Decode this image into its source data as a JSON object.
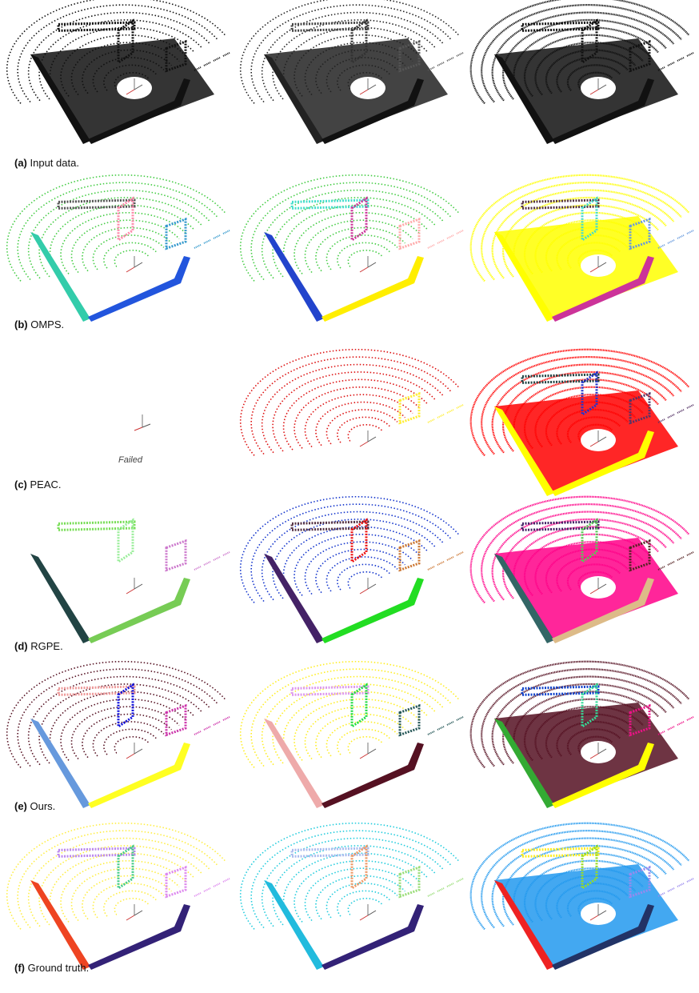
{
  "rows": [
    {
      "id": "a",
      "tag": "(a)",
      "caption": "Input data.",
      "panels": [
        {
          "floor": "#111111",
          "rings": "#111111",
          "walls": [
            "#111111",
            "#111111",
            "#111111"
          ],
          "side": "#111111",
          "front": "#111111"
        },
        {
          "floor": "#222222",
          "rings": "#222222",
          "walls": [
            "#444444",
            "#333333",
            "#555555"
          ],
          "side": "#222222",
          "front": "#111111"
        },
        {
          "floor": "#111111",
          "rings": "#111111",
          "walls": [
            "#111111",
            "#111111",
            "#111111"
          ],
          "side": "#111111",
          "front": "#111111",
          "dense": true
        }
      ]
    },
    {
      "id": "b",
      "tag": "(b)",
      "caption": "OMPS.",
      "panels": [
        {
          "floor": "none",
          "rings": "#44cc44",
          "walls": [
            "#555555",
            "#ff88aa",
            "#3399cc"
          ],
          "side": "#33ccaa",
          "front": "#2255dd"
        },
        {
          "floor": "none",
          "rings": "#44cc44",
          "walls": [
            "#44ddcc",
            "#cc3399",
            "#ffaaaa"
          ],
          "side": "#2244cc",
          "front": "#ffee00"
        },
        {
          "floor": "#ffff00",
          "rings": "#ffff00",
          "walls": [
            "#553344",
            "#44ddcc",
            "#6699dd"
          ],
          "side": "#ffff00",
          "front": "#cc3399",
          "dense": true
        }
      ]
    },
    {
      "id": "c",
      "tag": "(c)",
      "caption": "PEAC.",
      "failed_label": "Failed",
      "panels": [
        {
          "failed": true
        },
        {
          "floor": "none",
          "rings": "#dd1111",
          "walls": [
            "#ffffff",
            "#ffffff",
            "#ffee33"
          ],
          "side": "none",
          "front": "none"
        },
        {
          "floor": "#ff0000",
          "rings": "#ff0000",
          "walls": [
            "#224444",
            "#2233cc",
            "#553366"
          ],
          "side": "#ffff00",
          "front": "#ffff00",
          "dense": true
        }
      ]
    },
    {
      "id": "d",
      "tag": "(d)",
      "caption": "RGPE.",
      "panels": [
        {
          "floor": "none",
          "rings": "#ffffff",
          "walls": [
            "#77dd55",
            "#99ee99",
            "#cc77cc"
          ],
          "side": "#224444",
          "front": "#77cc55"
        },
        {
          "floor": "none",
          "rings": "#1133cc",
          "walls": [
            "#553344",
            "#ee1111",
            "#cc7733"
          ],
          "side": "#442266",
          "front": "#22dd22"
        },
        {
          "floor": "#ff0088",
          "rings": "#ff0088",
          "walls": [
            "#442266",
            "#55cc55",
            "#552222"
          ],
          "side": "#336666",
          "front": "#ddbb88",
          "dense": true
        }
      ]
    },
    {
      "id": "e",
      "tag": "(e)",
      "caption": "Ours.",
      "panels": [
        {
          "floor": "none",
          "rings": "#551122",
          "walls": [
            "#ee9999",
            "#1111dd",
            "#cc33aa"
          ],
          "side": "#6699dd",
          "front": "#ffff22"
        },
        {
          "floor": "none",
          "rings": "#ffee22",
          "walls": [
            "#dd99ee",
            "#22dd44",
            "#225555"
          ],
          "side": "#eeaaaa",
          "front": "#551122"
        },
        {
          "floor": "#551122",
          "rings": "#551122",
          "walls": [
            "#1144cc",
            "#33dd99",
            "#ee1188"
          ],
          "side": "#33aa33",
          "front": "#ffff00",
          "dense": true
        }
      ]
    },
    {
      "id": "f",
      "tag": "(f)",
      "caption": "Ground truth.",
      "panels": [
        {
          "floor": "none",
          "rings": "#ffee44",
          "walls": [
            "#bb88ee",
            "#44cc88",
            "#dd88ee"
          ],
          "side": "#ee4422",
          "front": "#332277"
        },
        {
          "floor": "none",
          "rings": "#22ccdd",
          "walls": [
            "#aabbee",
            "#ee9966",
            "#99dd77"
          ],
          "side": "#22bbdd",
          "front": "#332277"
        },
        {
          "floor": "#2299ee",
          "rings": "#2299ee",
          "walls": [
            "#ffee22",
            "#99dd22",
            "#9988ee"
          ],
          "side": "#ee2222",
          "front": "#223366",
          "dense": true
        }
      ]
    }
  ]
}
